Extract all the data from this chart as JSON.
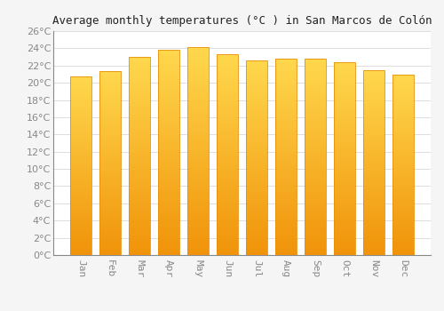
{
  "title": "Average monthly temperatures (°C ) in San Marcos de Colón",
  "months": [
    "Jan",
    "Feb",
    "Mar",
    "Apr",
    "May",
    "Jun",
    "Jul",
    "Aug",
    "Sep",
    "Oct",
    "Nov",
    "Dec"
  ],
  "values": [
    20.7,
    21.4,
    23.0,
    23.8,
    24.1,
    23.3,
    22.6,
    22.8,
    22.8,
    22.4,
    21.5,
    20.9
  ],
  "bar_color_top": "#FFD84D",
  "bar_color_bottom": "#F0930A",
  "bar_edge_color": "#E8900A",
  "background_color": "#F5F5F5",
  "plot_bg_color": "#FFFFFF",
  "grid_color": "#DDDDDD",
  "tick_color": "#888888",
  "title_color": "#222222",
  "ylim": [
    0,
    26
  ],
  "ytick_step": 2,
  "title_fontsize": 9,
  "tick_fontsize": 8
}
